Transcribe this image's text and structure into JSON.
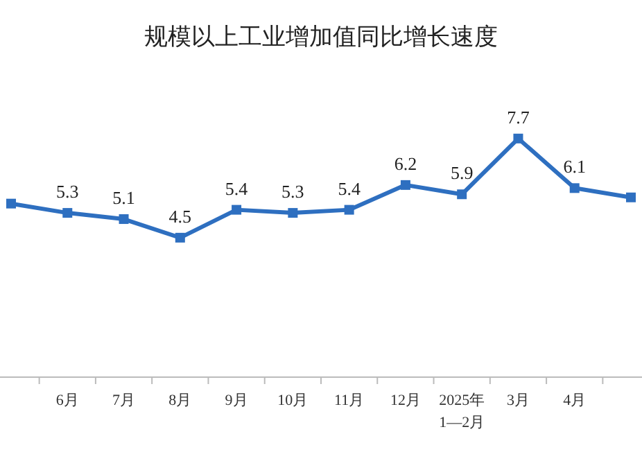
{
  "chart_data": {
    "type": "line",
    "title": "规模以上工业增加值同比增长速度",
    "categories": [
      null,
      "6月",
      "7月",
      "8月",
      "9月",
      "10月",
      "11月",
      "12月",
      "2025年\n1—2月",
      "3月",
      "4月",
      null
    ],
    "series": [
      {
        "color": "#2e6fc0",
        "values": [
          5.6,
          5.3,
          5.1,
          4.5,
          5.4,
          5.3,
          5.4,
          6.2,
          5.9,
          7.7,
          6.1,
          5.8
        ],
        "value_labels": [
          null,
          "5.3",
          "5.1",
          "4.5",
          "5.4",
          "5.3",
          "5.4",
          "6.2",
          "5.9",
          "7.7",
          "6.1",
          null
        ]
      }
    ],
    "marker": "square",
    "line_style": "solid",
    "grid": false,
    "tick_labels": "x"
  }
}
